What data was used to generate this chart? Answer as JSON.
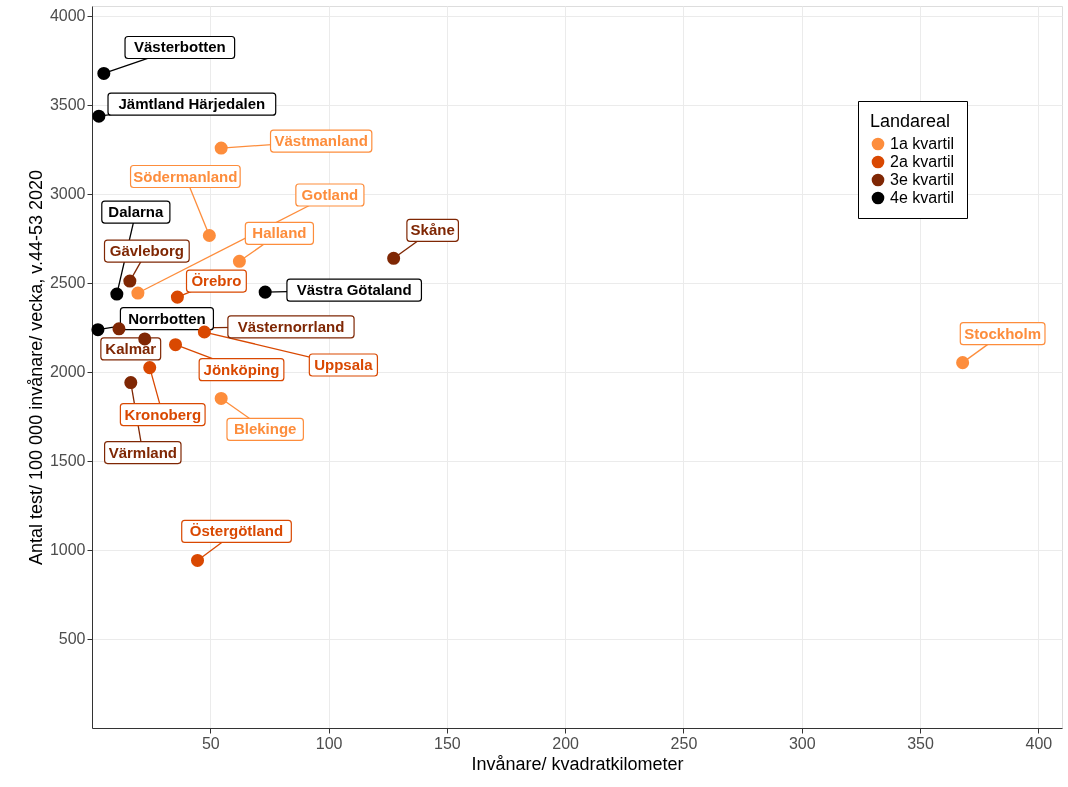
{
  "chart_data": {
    "type": "scatter",
    "xlabel": "Invånare/ kvadratkilometer",
    "ylabel": "Antal test/ 100 000 invånare/ vecka, v.44-53 2020",
    "legend_title": "Landareal",
    "legend": "top right",
    "grid": true,
    "marker": "circle",
    "xlim": [
      0,
      410
    ],
    "ylim": [
      0,
      4055
    ],
    "xticks": [
      50,
      100,
      150,
      200,
      250,
      300,
      350,
      400
    ],
    "yticks": [
      500,
      1000,
      1500,
      2000,
      2500,
      3000,
      3500,
      4000
    ],
    "series": [
      {
        "name": "1a kvartil",
        "color": "#fd8d3c",
        "x": [
          54.6,
          49.6,
          19.4,
          62.3,
          368,
          54.6
        ],
        "values": [
          3257,
          2766,
          2443,
          2621,
          2052,
          1851
        ]
      },
      {
        "name": "2a kvartil",
        "color": "#d94801",
        "x": [
          36.1,
          47.5,
          35.3,
          24.4,
          44.6
        ],
        "values": [
          2420,
          2224,
          2153,
          2024,
          941
        ]
      },
      {
        "name": "3e kvartil",
        "color": "#7f2704",
        "x": [
          16.0,
          127.5,
          11.4,
          22.3,
          16.4
        ],
        "values": [
          2510,
          2638,
          2242,
          2185,
          1940
        ]
      },
      {
        "name": "4e kvartil",
        "color": "#000000",
        "x": [
          5.0,
          2.9,
          10.5,
          73.2,
          2.5
        ],
        "values": [
          3676,
          3436,
          2437,
          2448,
          2237
        ]
      }
    ],
    "annotations": [
      {
        "text": "Västerbotten",
        "x": 5.0,
        "y": 3676
      },
      {
        "text": "Jämtland Härjedalen",
        "x": 2.9,
        "y": 3436
      },
      {
        "text": "Västmanland",
        "x": 54.6,
        "y": 3257
      },
      {
        "text": "Södermanland",
        "x": 49.6,
        "y": 2766
      },
      {
        "text": "Gotland",
        "x": 19.4,
        "y": 2443
      },
      {
        "text": "Halland",
        "x": 62.3,
        "y": 2621
      },
      {
        "text": "Skåne",
        "x": 127.5,
        "y": 2638
      },
      {
        "text": "Dalarna",
        "x": 10.5,
        "y": 2437
      },
      {
        "text": "Gävleborg",
        "x": 16.0,
        "y": 2510
      },
      {
        "text": "Örebro",
        "x": 36.1,
        "y": 2420
      },
      {
        "text": "Västra Götaland",
        "x": 73.2,
        "y": 2448
      },
      {
        "text": "Norrbotten",
        "x": 2.5,
        "y": 2237
      },
      {
        "text": "Västernorrland",
        "x": 11.4,
        "y": 2242
      },
      {
        "text": "Uppsala",
        "x": 47.5,
        "y": 2224
      },
      {
        "text": "Jönköping",
        "x": 35.3,
        "y": 2153
      },
      {
        "text": "Kalmar",
        "x": 22.3,
        "y": 2185
      },
      {
        "text": "Kronoberg",
        "x": 24.4,
        "y": 2024
      },
      {
        "text": "Värmland",
        "x": 16.4,
        "y": 1940
      },
      {
        "text": "Blekinge",
        "x": 54.6,
        "y": 1851
      },
      {
        "text": "Stockholm",
        "x": 368,
        "y": 2052
      },
      {
        "text": "Östergötland",
        "x": 44.6,
        "y": 941
      }
    ]
  }
}
